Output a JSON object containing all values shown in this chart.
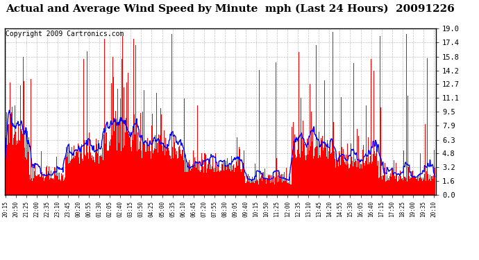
{
  "title": "Actual and Average Wind Speed by Minute  mph (Last 24 Hours)  20091226",
  "copyright": "Copyright 2009 Cartronics.com",
  "yticks": [
    0.0,
    1.6,
    3.2,
    4.8,
    6.3,
    7.9,
    9.5,
    11.1,
    12.7,
    14.2,
    15.8,
    17.4,
    19.0
  ],
  "ymax": 19.0,
  "ymin": 0.0,
  "bar_color": "#ff0000",
  "line_color": "#0000ff",
  "bg_color": "#ffffff",
  "grid_color": "#b0b0b0",
  "title_fontsize": 11,
  "copyright_fontsize": 7
}
